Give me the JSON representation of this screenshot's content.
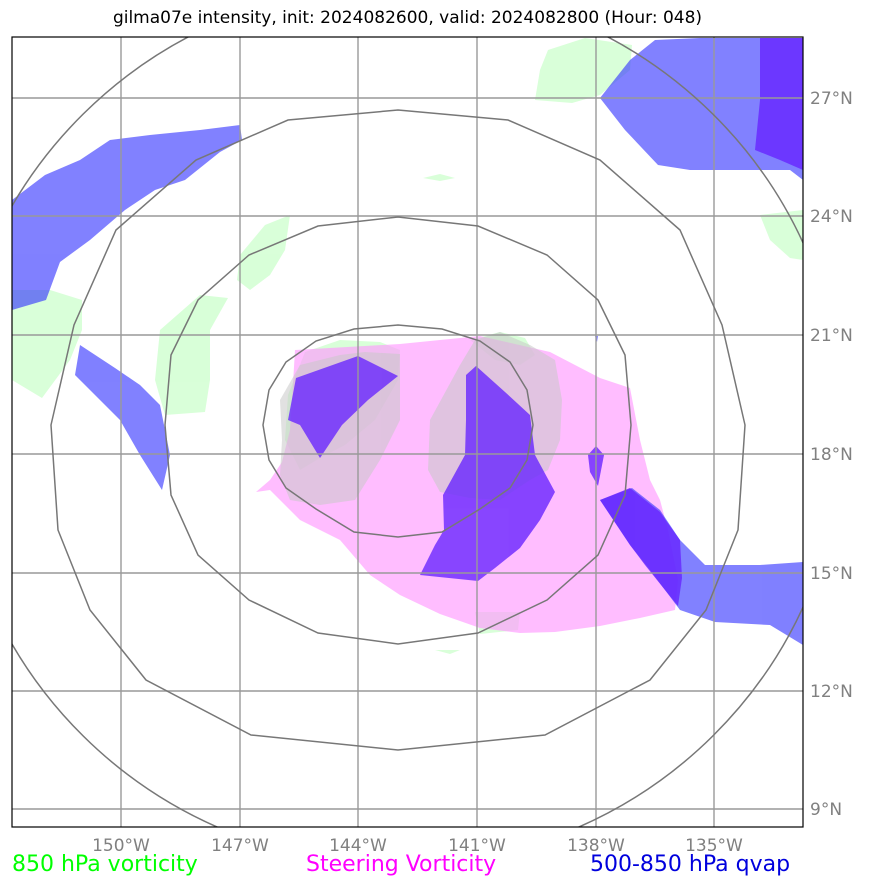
{
  "title": "gilma07e intensity, init: 2024082600, valid: 2024082800 (Hour: 048)",
  "map": {
    "lon_labels": [
      "150°W",
      "147°W",
      "144°W",
      "141°W",
      "138°W",
      "135°W"
    ],
    "lat_labels": [
      "27°N",
      "24°N",
      "21°N",
      "18°N",
      "15°N",
      "12°N",
      "9°N"
    ],
    "lon_range": [
      -152.8,
      -132.8
    ],
    "lat_range": [
      8.4,
      28.6
    ],
    "gridlines": true
  },
  "legend": {
    "vort850": {
      "label": "850 hPa vorticity",
      "color": "#00ff00"
    },
    "steering": {
      "label": "Steering Vorticity",
      "color": "#ff00ff"
    },
    "qvap": {
      "label": "500-850 hPa qvap",
      "color": "#0000dd"
    }
  },
  "colors": {
    "vort850_fill": "#ccffcc",
    "steering_fill": "#ff99ff",
    "qvap_fill": "#3333ff",
    "qvap_dark_fill": "#6622ff",
    "range_rings": "#777777",
    "grid": "#999999"
  }
}
